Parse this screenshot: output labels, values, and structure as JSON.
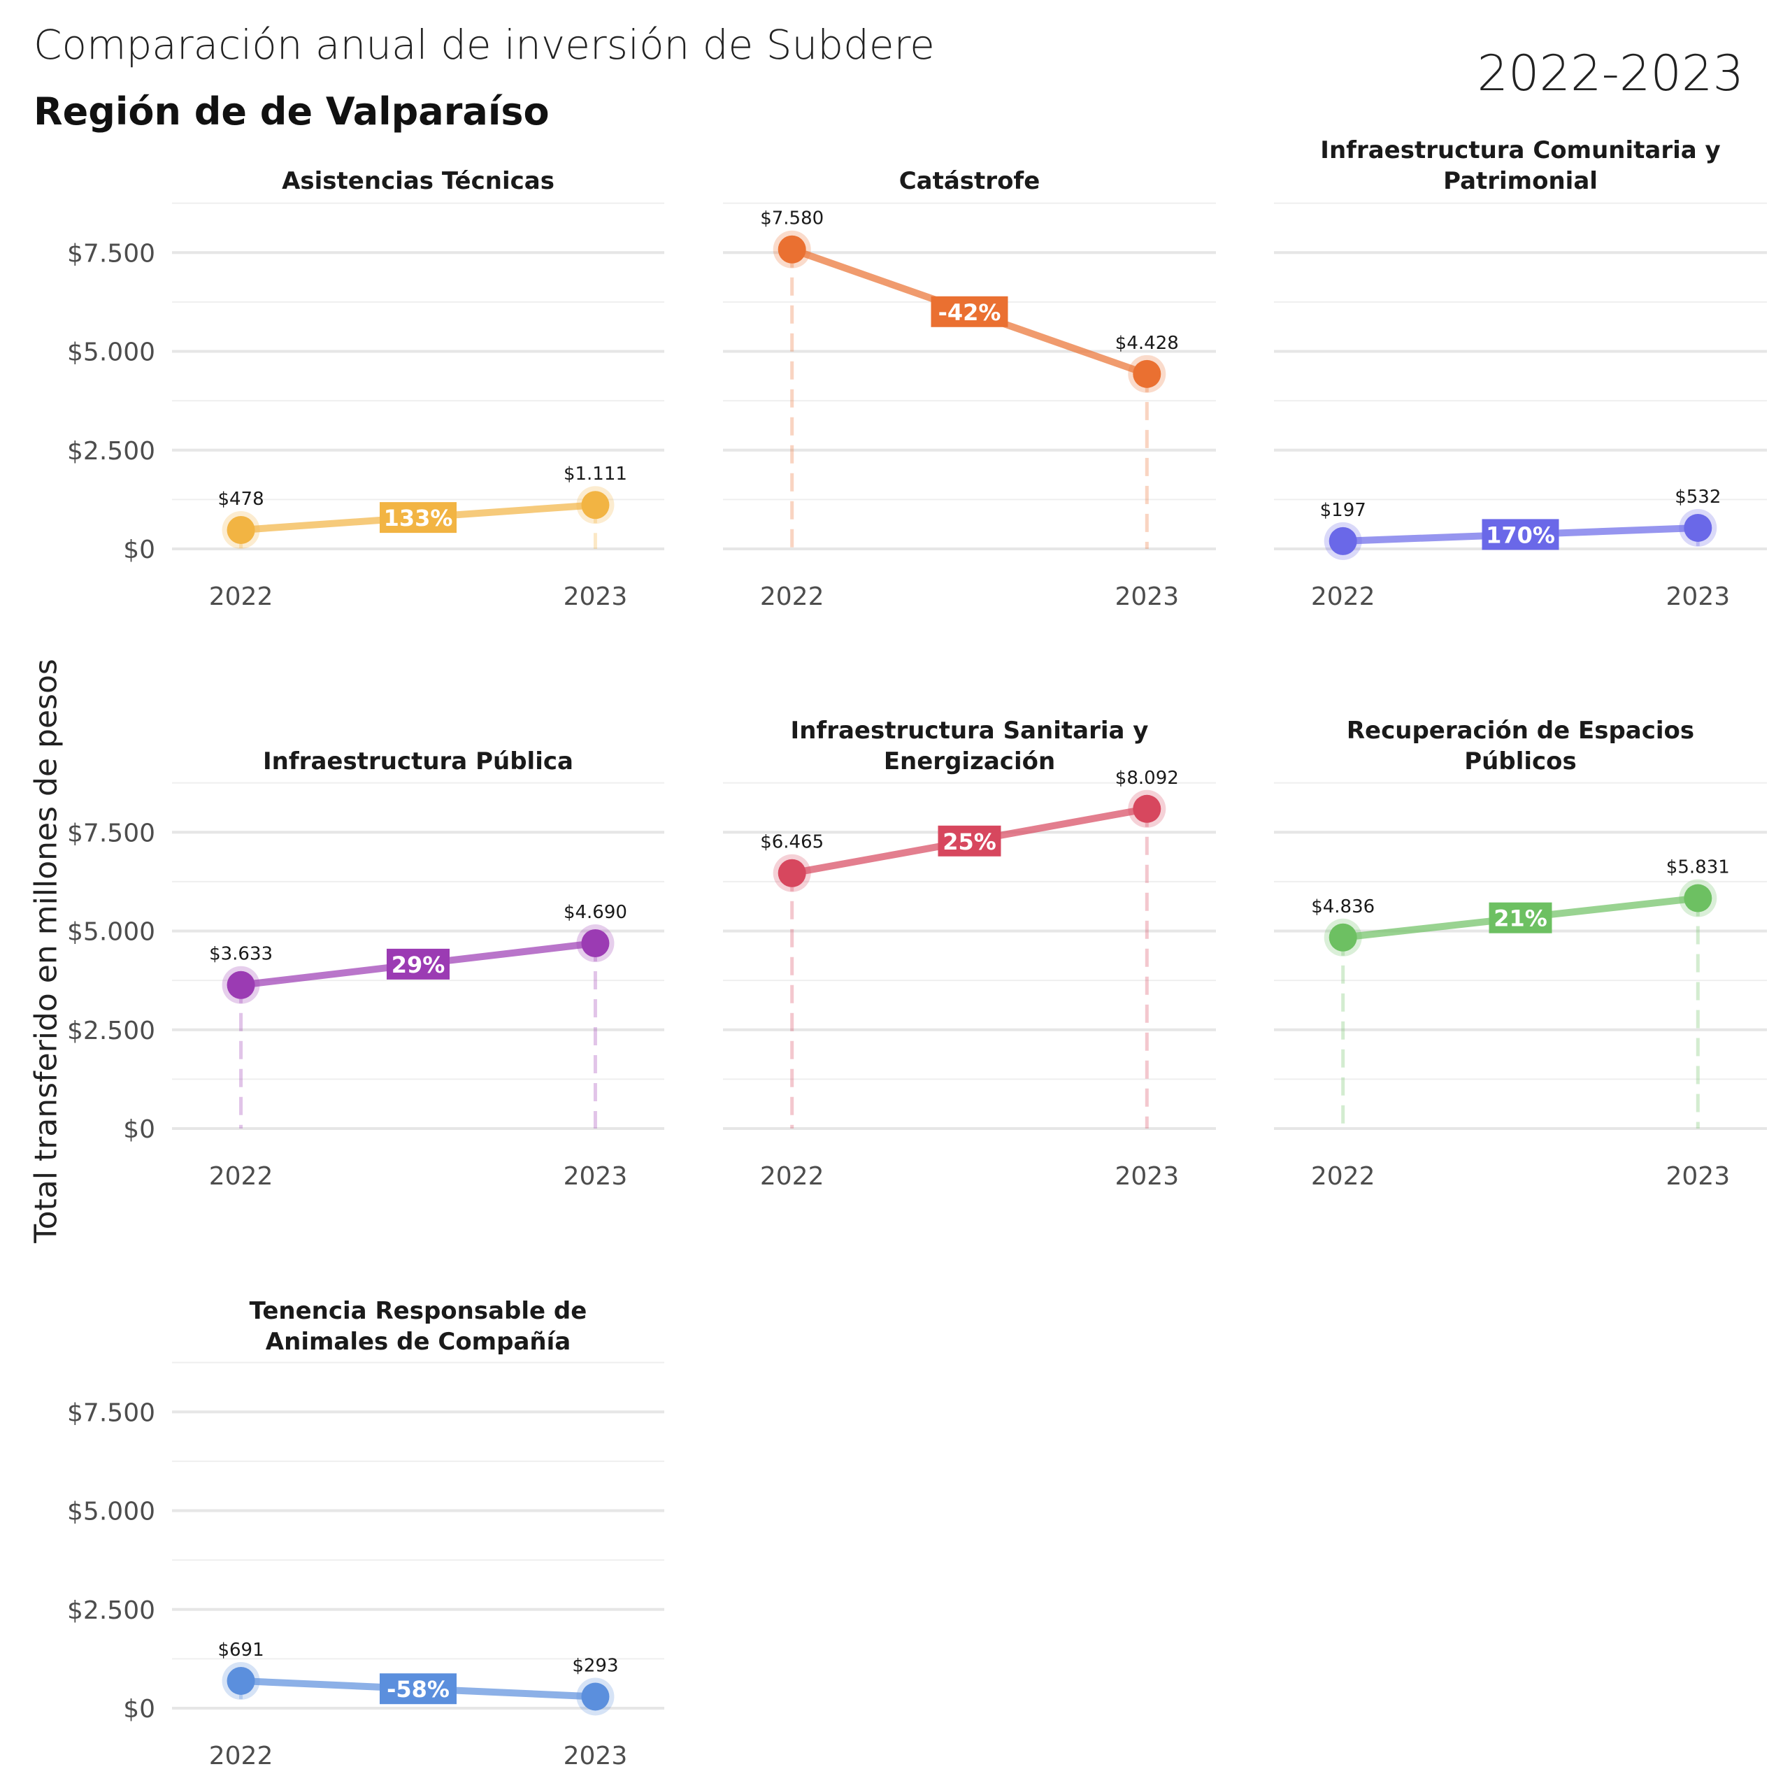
{
  "header": {
    "title": "Comparación anual de inversión de Subdere",
    "subtitle": "Región de de Valparaíso",
    "period": "2022-2023"
  },
  "chart_data": {
    "type": "line",
    "ylabel": "Total transferido en millones de pesos",
    "ylim": [
      0,
      8500
    ],
    "y_ticks": [
      0,
      2500,
      5000,
      7500
    ],
    "y_tick_labels": [
      "$0",
      "$2.500",
      "$5.000",
      "$7.500"
    ],
    "x": [
      "2022",
      "2023"
    ],
    "grid": true,
    "panels": [
      {
        "title": [
          "Asistencias Técnicas"
        ],
        "color": "#F2B443",
        "values": [
          478,
          1111
        ],
        "value_labels": [
          "$478",
          "$1.111"
        ],
        "change_label": "133%"
      },
      {
        "title": [
          "Catástrofe"
        ],
        "color": "#EA7031",
        "values": [
          7580,
          4428
        ],
        "value_labels": [
          "$7.580",
          "$4.428"
        ],
        "change_label": "-42%"
      },
      {
        "title": [
          "Infraestructura Comunitaria y",
          "Patrimonial"
        ],
        "color": "#6A68E8",
        "values": [
          197,
          532
        ],
        "value_labels": [
          "$197",
          "$532"
        ],
        "change_label": "170%"
      },
      {
        "title": [
          "Infraestructura Pública"
        ],
        "color": "#9B3BB3",
        "values": [
          3633,
          4690
        ],
        "value_labels": [
          "$3.633",
          "$4.690"
        ],
        "change_label": "29%"
      },
      {
        "title": [
          "Infraestructura Sanitaria y",
          "Energización"
        ],
        "color": "#D7475E",
        "values": [
          6465,
          8092
        ],
        "value_labels": [
          "$6.465",
          "$8.092"
        ],
        "change_label": "25%"
      },
      {
        "title": [
          "Recuperación de Espacios",
          "Públicos"
        ],
        "color": "#6DC062",
        "values": [
          4836,
          5831
        ],
        "value_labels": [
          "$4.836",
          "$5.831"
        ],
        "change_label": "21%"
      },
      {
        "title": [
          "Tenencia Responsable de",
          "Animales de Compañía"
        ],
        "color": "#5B8FDD",
        "values": [
          691,
          293
        ],
        "value_labels": [
          "$691",
          "$293"
        ],
        "change_label": "-58%"
      }
    ]
  }
}
